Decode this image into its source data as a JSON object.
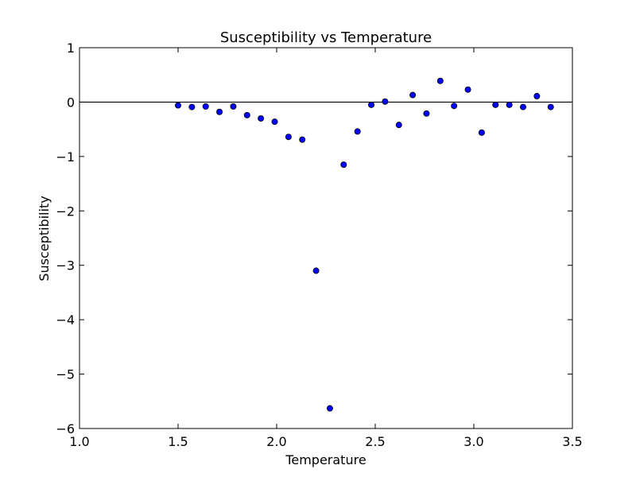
{
  "chart_data": {
    "type": "scatter",
    "title": "Susceptibility vs Temperature",
    "xlabel": "Temperature",
    "ylabel": "Susceptibility",
    "xlim": [
      1.0,
      3.5
    ],
    "ylim": [
      -6,
      1
    ],
    "xticks": [
      1.0,
      1.5,
      2.0,
      2.5,
      3.0,
      3.5
    ],
    "xtick_labels": [
      "1.0",
      "1.5",
      "2.0",
      "2.5",
      "3.0",
      "3.5"
    ],
    "yticks": [
      1,
      0,
      -1,
      -2,
      -3,
      -4,
      -5,
      -6
    ],
    "ytick_labels": [
      "1",
      "0",
      "−1",
      "−2",
      "−3",
      "−4",
      "−5",
      "−6"
    ],
    "reference_line_y": 0,
    "grid": false,
    "marker_color": "#0000ff",
    "series": [
      {
        "x": [
          1.5,
          1.57,
          1.64,
          1.71,
          1.78,
          1.85,
          1.92,
          1.99,
          2.06,
          2.13,
          2.2,
          2.27,
          2.34,
          2.41,
          2.48,
          2.55,
          2.62,
          2.69,
          2.76,
          2.83,
          2.9,
          2.97,
          3.04,
          3.11,
          3.18,
          3.25,
          3.32,
          3.39
        ],
        "y": [
          -0.06,
          -0.09,
          -0.08,
          -0.18,
          -0.08,
          -0.24,
          -0.3,
          -0.36,
          -0.64,
          -0.69,
          -3.1,
          -5.63,
          -1.15,
          -0.54,
          -0.05,
          0.01,
          -0.42,
          0.13,
          -0.21,
          0.39,
          -0.07,
          0.23,
          -0.56,
          -0.05,
          -0.05,
          -0.09,
          0.11,
          -0.09
        ]
      }
    ]
  }
}
